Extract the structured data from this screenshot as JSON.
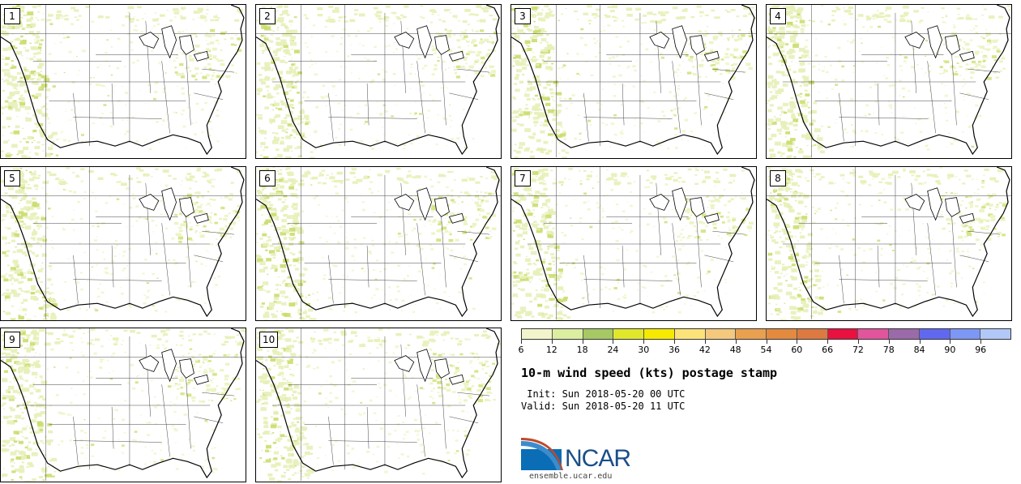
{
  "panels": [
    {
      "label": "1"
    },
    {
      "label": "2"
    },
    {
      "label": "3"
    },
    {
      "label": "4"
    },
    {
      "label": "5"
    },
    {
      "label": "6"
    },
    {
      "label": "7"
    },
    {
      "label": "8"
    },
    {
      "label": "9"
    },
    {
      "label": "10"
    }
  ],
  "colorbar": {
    "colors": [
      "#f2f5cc",
      "#dcefa0",
      "#a6c964",
      "#e0e82c",
      "#f6ea00",
      "#fbe37a",
      "#f4c97e",
      "#e9a04f",
      "#e38a3f",
      "#dc7a41",
      "#e8113f",
      "#e0559b",
      "#9b6aa8",
      "#6168f0",
      "#7d97f5",
      "#b2c8f8"
    ],
    "tick_labels": [
      "6",
      "12",
      "18",
      "24",
      "30",
      "36",
      "42",
      "48",
      "54",
      "60",
      "66",
      "72",
      "78",
      "84",
      "90",
      "96"
    ]
  },
  "title": "10-m wind speed (kts) postage stamp",
  "init_line": " Init: Sun 2018-05-20 00 UTC",
  "valid_line": "Valid: Sun 2018-05-20 11 UTC",
  "logo_text": "NCAR",
  "site": "ensemble.ucar.edu"
}
